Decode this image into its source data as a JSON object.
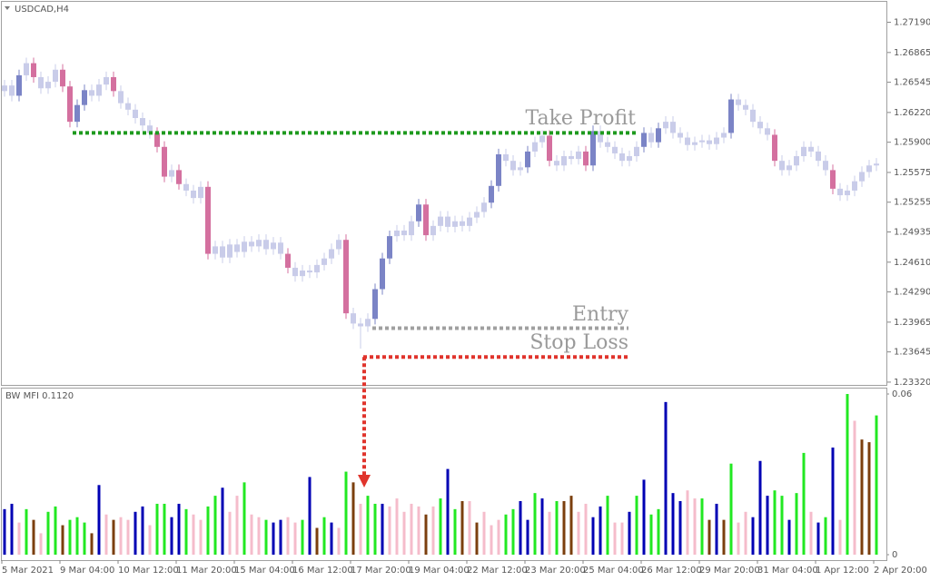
{
  "chart_data": [
    {
      "type": "candlestick",
      "title": "USDCAD,H4",
      "categories": [
        "5 Mar 2021",
        null,
        null,
        null,
        null,
        null,
        null,
        null,
        "9 Mar 04:00",
        null,
        null,
        null,
        null,
        null,
        null,
        null,
        "10 Mar 12:00",
        null,
        null,
        null,
        null,
        null,
        null,
        null,
        "11 Mar 20:00",
        null,
        null,
        null,
        null,
        null,
        null,
        null,
        "15 Mar 04:00",
        null,
        null,
        null,
        null,
        null,
        null,
        null,
        "16 Mar 12:00",
        null,
        null,
        null,
        null,
        null,
        null,
        null,
        "17 Mar 20:00",
        null,
        null,
        null,
        null,
        null,
        null,
        null,
        "19 Mar 04:00",
        null,
        null,
        null,
        null,
        null,
        null,
        null,
        "22 Mar 12:00",
        null,
        null,
        null,
        null,
        null,
        null,
        null,
        "23 Mar 20:00",
        null,
        null,
        null,
        null,
        null,
        null,
        null,
        "25 Mar 04:00",
        null,
        null,
        null,
        null,
        null,
        null,
        null,
        "26 Mar 12:00",
        null,
        null,
        null,
        null,
        null,
        null,
        null,
        "29 Mar 20:00",
        null,
        null,
        null,
        null,
        null,
        null,
        null,
        "31 Mar 04:00",
        null,
        null,
        null,
        null,
        null,
        null,
        null,
        "1 Apr 12:00",
        null,
        null,
        null,
        null,
        null,
        null,
        null,
        "2 Apr 20:00"
      ],
      "open": [
        1.2645,
        1.2651,
        1.264,
        1.2662,
        1.2675,
        1.266,
        1.2648,
        1.2655,
        1.2668,
        1.265,
        1.2612,
        1.263,
        1.2646,
        1.264,
        1.2652,
        1.266,
        1.2645,
        1.2632,
        1.2625,
        1.2616,
        1.2608,
        1.26,
        1.2585,
        1.2553,
        1.256,
        1.2545,
        1.2538,
        1.253,
        1.2542,
        1.247,
        1.2478,
        1.2466,
        1.248,
        1.2472,
        1.2483,
        1.2478,
        1.2485,
        1.2475,
        1.2482,
        1.247,
        1.2455,
        1.2446,
        1.2452,
        1.245,
        1.2458,
        1.2465,
        1.2475,
        1.2485,
        1.2406,
        1.2395,
        1.2392,
        1.24,
        1.2432,
        1.2465,
        1.2489,
        1.2495,
        1.249,
        1.2505,
        1.2523,
        1.249,
        1.25,
        1.251,
        1.2499,
        1.2505,
        1.25,
        1.2509,
        1.2515,
        1.2525,
        1.2543,
        1.2577,
        1.257,
        1.256,
        1.2563,
        1.258,
        1.259,
        1.2597,
        1.257,
        1.2565,
        1.2575,
        1.2572,
        1.258,
        1.2565,
        1.2602,
        1.259,
        1.2585,
        1.2578,
        1.257,
        1.2575,
        1.2585,
        1.26,
        1.259,
        1.2605,
        1.2612,
        1.26,
        1.2595,
        1.2587,
        1.259,
        1.2592,
        1.2588,
        1.2595,
        1.26,
        1.2636,
        1.263,
        1.2625,
        1.2612,
        1.2605,
        1.2598,
        1.257,
        1.256,
        1.2565,
        1.2575,
        1.2585,
        1.258,
        1.257,
        1.256,
        1.254,
        1.2533,
        1.2538,
        1.2548,
        1.2558,
        1.2565
      ],
      "high": [
        1.2657,
        1.2657,
        1.2668,
        1.2681,
        1.2681,
        1.2666,
        1.2661,
        1.2674,
        1.2674,
        1.2656,
        1.2636,
        1.2652,
        1.2652,
        1.2658,
        1.2666,
        1.2666,
        1.2651,
        1.2638,
        1.2631,
        1.2622,
        1.2614,
        1.2606,
        1.2591,
        1.2566,
        1.2566,
        1.2551,
        1.2544,
        1.2548,
        1.2548,
        1.2484,
        1.2484,
        1.2486,
        1.2486,
        1.2489,
        1.2489,
        1.2491,
        1.2491,
        1.2488,
        1.2488,
        1.2476,
        1.2461,
        1.2458,
        1.2458,
        1.2464,
        1.2471,
        1.2481,
        1.2491,
        1.2491,
        1.2412,
        1.2401,
        1.2406,
        1.2438,
        1.2471,
        1.2495,
        1.2501,
        1.2501,
        1.2511,
        1.2529,
        1.2529,
        1.2506,
        1.2516,
        1.2516,
        1.2511,
        1.2511,
        1.2515,
        1.2521,
        1.2531,
        1.2549,
        1.2583,
        1.2583,
        1.2576,
        1.2569,
        1.2586,
        1.2596,
        1.2603,
        1.2603,
        1.2576,
        1.2581,
        1.2581,
        1.2586,
        1.2586,
        1.2608,
        1.2608,
        1.2596,
        1.2591,
        1.2584,
        1.2581,
        1.2591,
        1.2606,
        1.2606,
        1.2611,
        1.2618,
        1.2618,
        1.2606,
        1.2601,
        1.2596,
        1.2598,
        1.2598,
        1.2601,
        1.2606,
        1.2642,
        1.2642,
        1.2636,
        1.2631,
        1.2618,
        1.2611,
        1.2604,
        1.2576,
        1.2571,
        1.2581,
        1.2591,
        1.2591,
        1.2586,
        1.2576,
        1.2566,
        1.2546,
        1.2544,
        1.2554,
        1.2564,
        1.2571,
        1.2573
      ],
      "low": [
        1.2639,
        1.2634,
        1.2634,
        1.2656,
        1.2654,
        1.2642,
        1.2642,
        1.2649,
        1.2644,
        1.2606,
        1.2606,
        1.2624,
        1.2634,
        1.2634,
        1.2646,
        1.2639,
        1.2626,
        1.2619,
        1.261,
        1.2602,
        1.2594,
        1.2579,
        1.2547,
        1.2547,
        1.2539,
        1.2532,
        1.2524,
        1.2524,
        1.2464,
        1.2464,
        1.246,
        1.246,
        1.2466,
        1.2466,
        1.2472,
        1.2472,
        1.2469,
        1.2469,
        1.2464,
        1.2449,
        1.244,
        1.244,
        1.2444,
        1.2444,
        1.2452,
        1.2459,
        1.2469,
        1.24,
        1.2389,
        1.2368,
        1.2386,
        1.2394,
        1.2426,
        1.2459,
        1.2483,
        1.2484,
        1.2484,
        1.2499,
        1.2484,
        1.2484,
        1.2494,
        1.2493,
        1.2493,
        1.2494,
        1.2494,
        1.2503,
        1.2509,
        1.2519,
        1.2537,
        1.2564,
        1.2554,
        1.2554,
        1.2557,
        1.2574,
        1.2584,
        1.2564,
        1.2559,
        1.2559,
        1.2566,
        1.2566,
        1.2559,
        1.2559,
        1.2584,
        1.2579,
        1.2572,
        1.2564,
        1.2564,
        1.2569,
        1.2579,
        1.2584,
        1.2584,
        1.2599,
        1.2594,
        1.2589,
        1.2581,
        1.2581,
        1.2584,
        1.2582,
        1.2582,
        1.2589,
        1.2594,
        1.2624,
        1.2619,
        1.2606,
        1.2599,
        1.2592,
        1.2564,
        1.2554,
        1.2554,
        1.2559,
        1.2569,
        1.2574,
        1.2564,
        1.2554,
        1.2534,
        1.2527,
        1.2527,
        1.2532,
        1.2542,
        1.2552,
        1.2559
      ],
      "close": [
        1.2651,
        1.264,
        1.2662,
        1.2675,
        1.266,
        1.2648,
        1.2655,
        1.2668,
        1.265,
        1.2612,
        1.263,
        1.2646,
        1.264,
        1.2652,
        1.266,
        1.2645,
        1.2632,
        1.2625,
        1.2616,
        1.2608,
        1.26,
        1.2585,
        1.2553,
        1.256,
        1.2545,
        1.2538,
        1.253,
        1.2542,
        1.247,
        1.2478,
        1.2466,
        1.248,
        1.2472,
        1.2483,
        1.2478,
        1.2485,
        1.2475,
        1.2482,
        1.247,
        1.2455,
        1.2446,
        1.2452,
        1.245,
        1.2458,
        1.2465,
        1.2475,
        1.2485,
        1.2406,
        1.2395,
        1.2392,
        1.24,
        1.2432,
        1.2465,
        1.2489,
        1.2495,
        1.249,
        1.2505,
        1.2523,
        1.249,
        1.25,
        1.251,
        1.2499,
        1.2505,
        1.25,
        1.2509,
        1.2515,
        1.2525,
        1.2543,
        1.2577,
        1.257,
        1.256,
        1.2563,
        1.258,
        1.259,
        1.2597,
        1.257,
        1.2565,
        1.2575,
        1.2572,
        1.258,
        1.2565,
        1.2602,
        1.259,
        1.2585,
        1.2578,
        1.257,
        1.2575,
        1.2585,
        1.26,
        1.259,
        1.2605,
        1.2612,
        1.26,
        1.2595,
        1.2587,
        1.259,
        1.2592,
        1.2588,
        1.2595,
        1.26,
        1.2636,
        1.263,
        1.2625,
        1.2612,
        1.2605,
        1.2598,
        1.257,
        1.256,
        1.2565,
        1.2575,
        1.2585,
        1.258,
        1.257,
        1.256,
        1.254,
        1.2533,
        1.2538,
        1.2548,
        1.2558,
        1.2565,
        1.2567
      ],
      "ylim": [
        1.2329,
        1.2741
      ],
      "yticks": [
        {
          "value": 1.2719,
          "label": "1.27190"
        },
        {
          "value": 1.26865,
          "label": "1.26865"
        },
        {
          "value": 1.26545,
          "label": "1.26545"
        },
        {
          "value": 1.2622,
          "label": "1.26220"
        },
        {
          "value": 1.259,
          "label": "1.25900"
        },
        {
          "value": 1.25575,
          "label": "1.25575"
        },
        {
          "value": 1.25255,
          "label": "1.25255"
        },
        {
          "value": 1.24935,
          "label": "1.24935"
        },
        {
          "value": 1.2461,
          "label": "1.24610"
        },
        {
          "value": 1.2429,
          "label": "1.24290"
        },
        {
          "value": 1.23965,
          "label": "1.23965"
        },
        {
          "value": 1.23645,
          "label": "1.23645"
        },
        {
          "value": 1.2332,
          "label": "1.23320"
        }
      ],
      "levels": [
        {
          "label": "Take Profit",
          "value": 1.26,
          "color": "#1e9a1e"
        },
        {
          "label": "Entry",
          "value": 1.239,
          "color": "#a0a0a0"
        },
        {
          "label": "Stop Loss",
          "value": 1.2359,
          "color": "#e0342c"
        }
      ]
    },
    {
      "type": "bar",
      "title": "BW MFI 0.1120",
      "values": [
        0.017,
        0.019,
        0.012,
        0.017,
        0.013,
        0.008,
        0.016,
        0.018,
        0.011,
        0.013,
        0.014,
        0.012,
        0.008,
        0.026,
        0.015,
        0.013,
        0.014,
        0.013,
        0.016,
        0.018,
        0.011,
        0.019,
        0.019,
        0.014,
        0.019,
        0.017,
        0.015,
        0.013,
        0.018,
        0.022,
        0.025,
        0.016,
        0.022,
        0.027,
        0.015,
        0.014,
        0.013,
        0.012,
        0.013,
        0.014,
        0.012,
        0.013,
        0.029,
        0.01,
        0.014,
        0.012,
        0.01,
        0.031,
        0.027,
        0.019,
        0.022,
        0.019,
        0.019,
        0.018,
        0.021,
        0.016,
        0.019,
        0.018,
        0.015,
        0.018,
        0.021,
        0.032,
        0.017,
        0.02,
        0.02,
        0.012,
        0.016,
        0.011,
        0.013,
        0.015,
        0.017,
        0.02,
        0.013,
        0.023,
        0.021,
        0.016,
        0.02,
        0.02,
        0.022,
        0.016,
        0.019,
        0.014,
        0.018,
        0.022,
        0.012,
        0.012,
        0.016,
        0.022,
        0.028,
        0.015,
        0.017,
        0.057,
        0.023,
        0.02,
        0.024,
        0.021,
        0.021,
        0.013,
        0.019,
        0.013,
        0.034,
        0.012,
        0.016,
        0.014,
        0.035,
        0.022,
        0.024,
        0.022,
        0.013,
        0.023,
        0.038,
        0.016,
        0.012,
        0.014,
        0.04,
        0.013,
        0.06,
        0.05,
        0.043,
        0.042,
        0.052
      ],
      "colors": [
        "#0000b4",
        "#0000b4",
        "#f5bccb",
        "#22e822",
        "#7b3f0e",
        "#f5bccb",
        "#22e822",
        "#22e822",
        "#7b3f0e",
        "#22e822",
        "#22e822",
        "#22e822",
        "#7b3f0e",
        "#0000b4",
        "#f5bccb",
        "#7b3f0e",
        "#f5bccb",
        "#f5bccb",
        "#0000b4",
        "#0000b4",
        "#f5bccb",
        "#22e822",
        "#22e822",
        "#0000b4",
        "#0000b4",
        "#22e822",
        "#f5bccb",
        "#f5bccb",
        "#22e822",
        "#22e822",
        "#0000b4",
        "#f5bccb",
        "#f5bccb",
        "#22e822",
        "#f5bccb",
        "#f5bccb",
        "#22e822",
        "#0000b4",
        "#0000b4",
        "#f5bccb",
        "#f5bccb",
        "#22e822",
        "#0000b4",
        "#7b3f0e",
        "#22e822",
        "#0000b4",
        "#f5bccb",
        "#22e822",
        "#7b3f0e",
        "#f5bccb",
        "#22e822",
        "#22e822",
        "#0000b4",
        "#f5bccb",
        "#f5bccb",
        "#f5bccb",
        "#f5bccb",
        "#f5bccb",
        "#7b3f0e",
        "#f5bccb",
        "#22e822",
        "#0000b4",
        "#22e822",
        "#7b3f0e",
        "#f5bccb",
        "#7b3f0e",
        "#f5bccb",
        "#f5bccb",
        "#f5bccb",
        "#22e822",
        "#22e822",
        "#0000b4",
        "#0000b4",
        "#22e822",
        "#0000b4",
        "#f5bccb",
        "#22e822",
        "#7b3f0e",
        "#7b3f0e",
        "#f5bccb",
        "#f5bccb",
        "#0000b4",
        "#0000b4",
        "#22e822",
        "#f5bccb",
        "#f5bccb",
        "#0000b4",
        "#22e822",
        "#0000b4",
        "#22e822",
        "#22e822",
        "#0000b4",
        "#0000b4",
        "#0000b4",
        "#f5bccb",
        "#f5bccb",
        "#22e822",
        "#7b3f0e",
        "#0000b4",
        "#7b3f0e",
        "#22e822",
        "#f5bccb",
        "#f5bccb",
        "#0000b4",
        "#0000b4",
        "#0000b4",
        "#22e822",
        "#22e822",
        "#0000b4",
        "#22e822",
        "#22e822",
        "#f5bccb",
        "#0000b4",
        "#22e822",
        "#0000b4",
        "#f5bccb",
        "#22e822",
        "#f5bccb",
        "#7b3f0e",
        "#7b3f0e",
        "#22e822"
      ],
      "ylim": [
        0,
        0.06
      ],
      "yticks": [
        0.06,
        0
      ]
    }
  ]
}
